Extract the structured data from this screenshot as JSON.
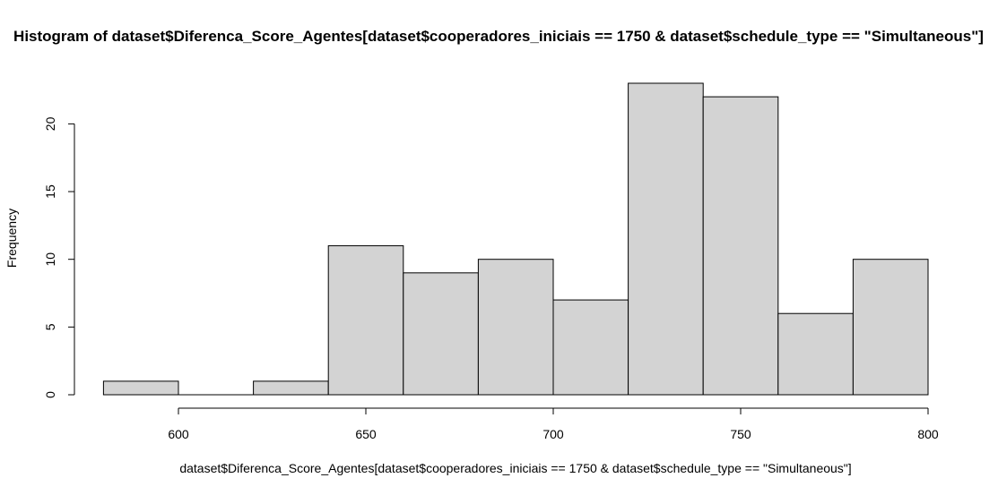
{
  "chart_data": {
    "type": "bar",
    "title": "Histogram of dataset$Diferenca_Score_Agentes[dataset$cooperadores_iniciais == 1750 & dataset$schedule_type == \"Simultaneous\"]",
    "xlabel": "dataset$Diferenca_Score_Agentes[dataset$cooperadores_iniciais == 1750 & dataset$schedule_type == \"Simultaneous\"]",
    "ylabel": "Frequency",
    "bins": [
      {
        "start": 580,
        "end": 600,
        "count": 1
      },
      {
        "start": 600,
        "end": 620,
        "count": 0
      },
      {
        "start": 620,
        "end": 640,
        "count": 1
      },
      {
        "start": 640,
        "end": 660,
        "count": 11
      },
      {
        "start": 660,
        "end": 680,
        "count": 9
      },
      {
        "start": 680,
        "end": 700,
        "count": 10
      },
      {
        "start": 700,
        "end": 720,
        "count": 7
      },
      {
        "start": 720,
        "end": 740,
        "count": 23
      },
      {
        "start": 740,
        "end": 760,
        "count": 22
      },
      {
        "start": 760,
        "end": 780,
        "count": 6
      },
      {
        "start": 780,
        "end": 800,
        "count": 10
      }
    ],
    "xticks": [
      600,
      650,
      700,
      750,
      800
    ],
    "yticks": [
      0,
      5,
      10,
      15,
      20
    ],
    "xlim": [
      580,
      800
    ],
    "ylim": [
      0,
      23
    ],
    "grid": false,
    "bar_color": "#d3d3d3",
    "edge_color": "#000000"
  }
}
